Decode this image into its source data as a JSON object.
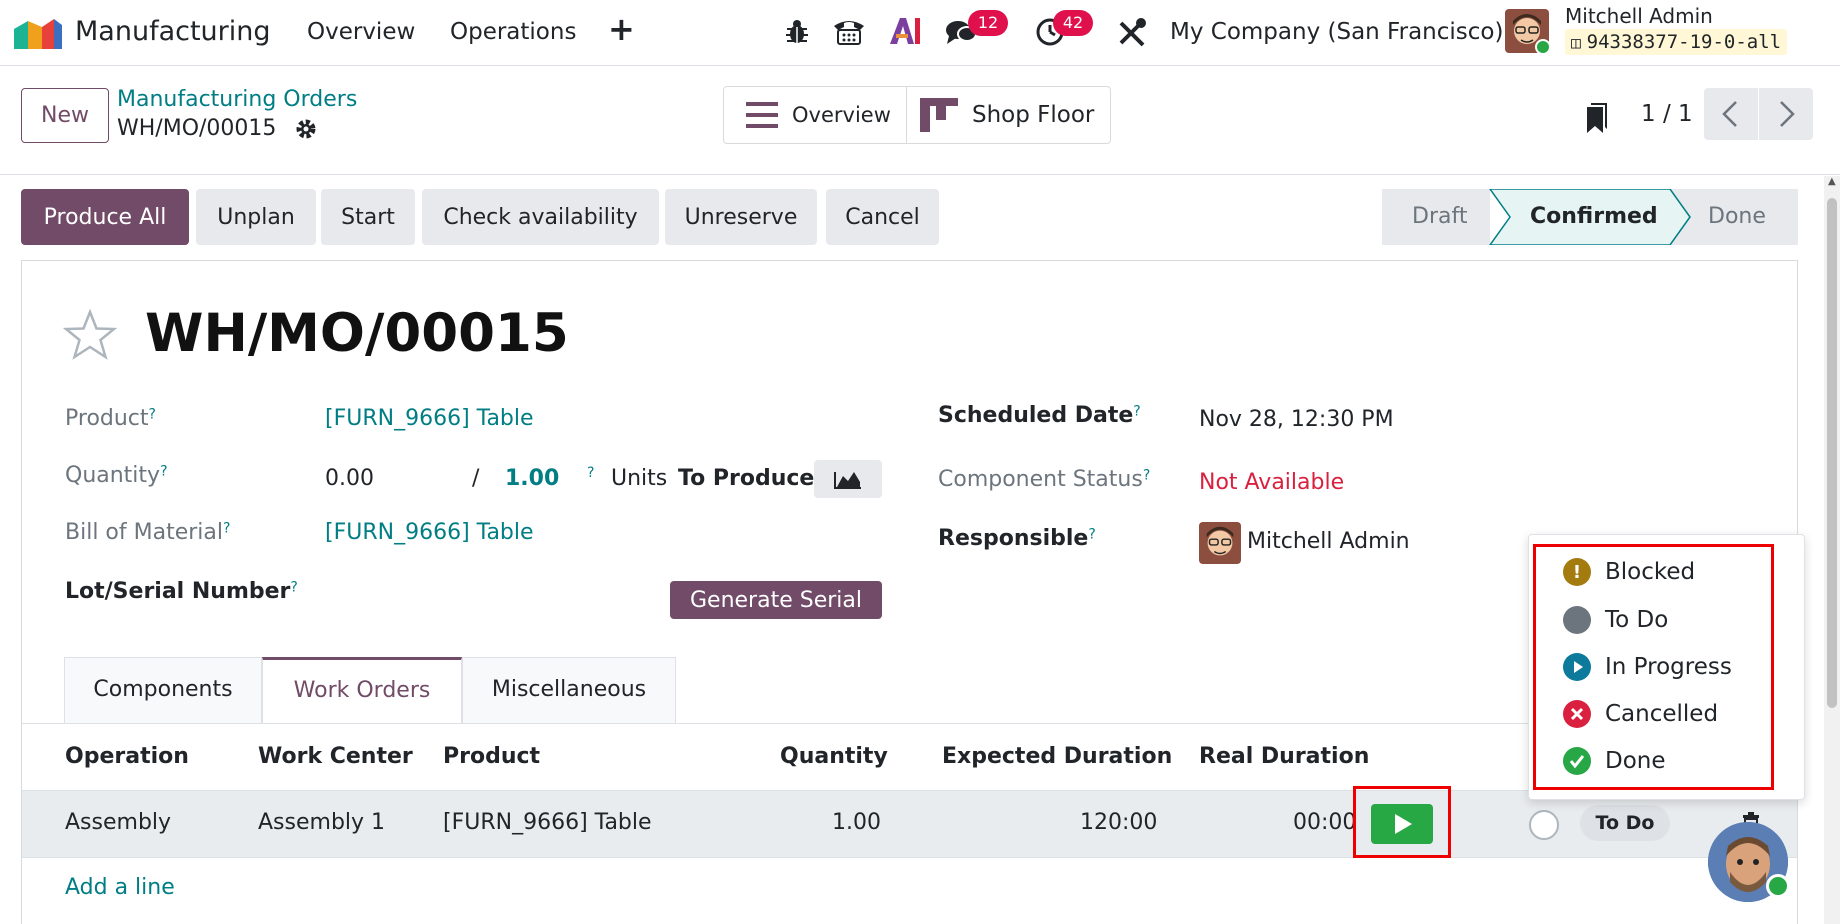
{
  "topbar": {
    "app_name": "Manufacturing",
    "menu": [
      "Overview",
      "Operations"
    ],
    "plus": "+",
    "messages_count": "12",
    "activities_count": "42",
    "company": "My Company (San Francisco)",
    "user_name": "Mitchell Admin",
    "db_name": "94338377-19-0-all"
  },
  "control_panel": {
    "new_label": "New",
    "breadcrumb_parent": "Manufacturing Orders",
    "record_name": "WH/MO/00015",
    "overview_label": "Overview",
    "shop_floor_label": "Shop Floor",
    "pager": "1 / 1"
  },
  "actions": {
    "produce_all": "Produce All",
    "unplan": "Unplan",
    "start": "Start",
    "check_availability": "Check availability",
    "unreserve": "Unreserve",
    "cancel": "Cancel"
  },
  "statusbar": [
    "Draft",
    "Confirmed",
    "Done"
  ],
  "form": {
    "title": "WH/MO/00015",
    "product_label": "Product",
    "product_value": "[FURN_9666] Table",
    "quantity_label": "Quantity",
    "quantity_produced": "0.00",
    "quantity_sep": "/",
    "quantity_total": "1.00",
    "units": "Units",
    "to_produce": "To Produce",
    "bom_label": "Bill of Material",
    "bom_value": "[FURN_9666] Table",
    "lot_label": "Lot/Serial Number",
    "generate_serial": "Generate Serial",
    "scheduled_label": "Scheduled Date",
    "scheduled_value": "Nov 28, 12:30 PM",
    "component_status_label": "Component Status",
    "component_status_value": "Not Available",
    "responsible_label": "Responsible",
    "responsible_value": "Mitchell Admin",
    "help_mark": "?"
  },
  "tabs": [
    "Components",
    "Work Orders",
    "Miscellaneous"
  ],
  "table": {
    "headers": [
      "Operation",
      "Work Center",
      "Product",
      "Quantity",
      "Expected Duration",
      "Real Duration"
    ],
    "row": {
      "operation": "Assembly",
      "work_center": "Assembly 1",
      "product": "[FURN_9666] Table",
      "quantity": "1.00",
      "expected": "120:00",
      "real": "00:00",
      "status": "To Do"
    },
    "add_line": "Add a line"
  },
  "dropdown": {
    "items": [
      "Blocked",
      "To Do",
      "In Progress",
      "Cancelled",
      "Done"
    ],
    "colors": [
      "#a37b0f",
      "#6c757d",
      "#0d7a9c",
      "#d9213f",
      "#27a746"
    ]
  },
  "colors": {
    "brand": "#714b67",
    "link": "#017e84",
    "danger": "#d9213f",
    "play_green": "#28a745"
  }
}
